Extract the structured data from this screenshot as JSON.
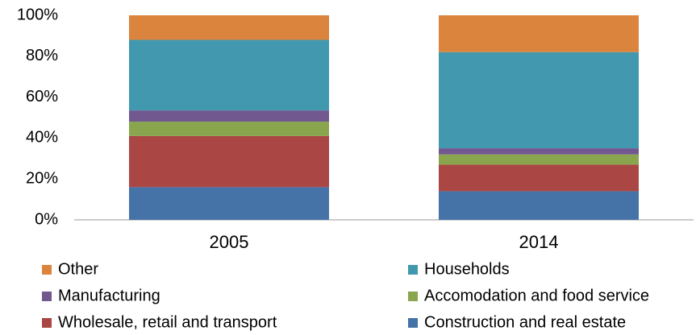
{
  "chart_data": {
    "type": "stacked_bar",
    "categories": [
      "2005",
      "2014"
    ],
    "series": [
      {
        "name": "Construction and real estate",
        "color": "#4572a7",
        "values": [
          16,
          14
        ]
      },
      {
        "name": "Wholesale, retail and transport",
        "color": "#aa4643",
        "values": [
          25,
          13
        ]
      },
      {
        "name": "Accomodation and food service",
        "color": "#89a54e",
        "values": [
          7,
          5
        ]
      },
      {
        "name": "Manufacturing",
        "color": "#71588f",
        "values": [
          5.5,
          3
        ]
      },
      {
        "name": "Households",
        "color": "#4198af",
        "values": [
          34.5,
          47
        ]
      },
      {
        "name": "Other",
        "color": "#db843d",
        "values": [
          12,
          18
        ]
      }
    ],
    "ylim": [
      0,
      100
    ],
    "yticks": [
      {
        "value": 0,
        "label": "0%"
      },
      {
        "value": 20,
        "label": "20%"
      },
      {
        "value": 40,
        "label": "40%"
      },
      {
        "value": 60,
        "label": "60%"
      },
      {
        "value": 80,
        "label": "80%"
      },
      {
        "value": 100,
        "label": "100%"
      }
    ],
    "legend": "bottom"
  }
}
